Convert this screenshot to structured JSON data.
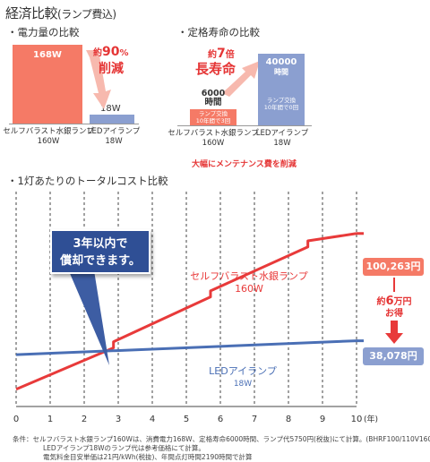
{
  "title": "経済比較",
  "title_sub": "(ランプ費込)",
  "section_power": "・電力量の比較",
  "section_life": "・定格寿命の比較",
  "section_cost": "・1灯あたりのトータルコスト比較",
  "power": {
    "mercury_value": "168W",
    "led_value": "18W",
    "reduce_pre": "約",
    "reduce_pct": "90",
    "reduce_unit": "%",
    "reduce_word": "削減",
    "label_mercury_1": "セルフバラスト水銀ランプ",
    "label_mercury_2": "160W",
    "label_led_1": "LEDアイランプ",
    "label_led_2": "18W"
  },
  "life": {
    "times_pre": "約",
    "times_num": "7",
    "times_unit": "倍",
    "long_life": "長寿命",
    "mercury_hours_1": "6000",
    "mercury_hours_2": "時間",
    "mercury_box_1": "ランプ交換",
    "mercury_box_2": "10年間で3回",
    "led_hours_1": "40000",
    "led_hours_2": "時間",
    "led_box_1": "ランプ交換",
    "led_box_2": "10年間で0回",
    "label_mercury_1": "セルフバラスト水銀ランプ",
    "label_mercury_2": "160W",
    "label_led_1": "LEDアイランプ",
    "label_led_2": "18W",
    "note": "大幅にメンテナンス費を削減"
  },
  "callout_1": "3年以内で",
  "callout_2": "償却できます。",
  "chart_data": {
    "type": "line",
    "xlabel": "(年)",
    "x_ticks": [
      "0",
      "1",
      "2",
      "3",
      "4",
      "5",
      "6",
      "7",
      "8",
      "9",
      "10"
    ],
    "xlim": [
      0,
      10
    ],
    "series": [
      {
        "name": "セルフバラスト水銀ランプ 160W",
        "label_1": "セルフバラスト水銀ランプ",
        "label_2": "160W",
        "color": "#e83a3a",
        "points": [
          [
            0,
            10000
          ],
          [
            2.86,
            34000
          ],
          [
            2.86,
            37500
          ],
          [
            5.71,
            63500
          ],
          [
            5.71,
            67000
          ],
          [
            8.57,
            92500
          ],
          [
            8.57,
            96000
          ],
          [
            10,
            100263
          ]
        ]
      },
      {
        "name": "LEDアイランプ 18W",
        "label_1": "LEDアイランプ",
        "label_2": "18W",
        "color": "#4a6fb5",
        "points": [
          [
            0,
            30000
          ],
          [
            10,
            38078
          ]
        ]
      }
    ],
    "end_values": [
      "100,263円",
      "38,078円"
    ],
    "savings_pre": "約",
    "savings_num": "6",
    "savings_unit": "万円",
    "savings_word": "お得"
  },
  "footer_1": "条件：セルフバラスト水銀ランプ160Wは、消費電力168W、定格寿命6000時間、ランプ代5750円(税抜)にて計算。(BHRF100/110V160WH)",
  "footer_2": "LEDアイランプ18Wのランプ代は参考価格にて計算。",
  "footer_3": "電気料金目安単価は21円/kWh(税抜)、年間点灯時間2190時間で計算"
}
